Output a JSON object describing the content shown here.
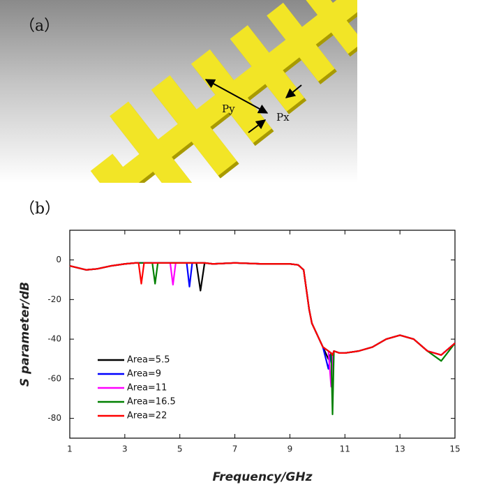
{
  "figure": {
    "panel_a_label": "（a）",
    "panel_b_label": "（b）",
    "dimension_labels": [
      "Py",
      "Px"
    ]
  },
  "chart_data": {
    "type": "line",
    "xlabel": "Frequency/GHz",
    "ylabel": "S parameter/dB",
    "x": [
      1,
      1.3,
      1.6,
      2,
      2.5,
      3,
      3.4,
      3.5,
      3.6,
      3.7,
      3.9,
      4.0,
      4.1,
      4.2,
      4.5,
      4.65,
      4.75,
      4.85,
      5.1,
      5.25,
      5.35,
      5.45,
      5.6,
      5.75,
      5.9,
      6.2,
      7,
      8,
      9,
      9.3,
      9.5,
      9.6,
      9.7,
      9.8,
      10,
      10.2,
      10.4,
      10.5,
      10.55,
      10.6,
      10.8,
      11,
      11.5,
      12,
      12.5,
      13,
      13.5,
      14,
      14.5,
      15
    ],
    "series": [
      {
        "name": "Area=5.5",
        "color": "#000000",
        "values": [
          -3,
          -4,
          -5,
          -4.5,
          -3,
          -2,
          -1.5,
          -1.5,
          -1.5,
          -1.5,
          -1.5,
          -1.5,
          -1.5,
          -1.5,
          -1.5,
          -1.5,
          -1.5,
          -1.5,
          -1.5,
          -1.5,
          -1.5,
          -1.5,
          -1.5,
          -15.5,
          -1.5,
          -2,
          -1.5,
          -2,
          -2,
          -2.5,
          -5,
          -15,
          -25,
          -32,
          -38,
          -44,
          -50,
          -47,
          -48,
          -46,
          -47,
          -47,
          -46,
          -44,
          -40,
          -38,
          -40,
          -46,
          -48,
          -42
        ]
      },
      {
        "name": "Area=9",
        "color": "#0000ff",
        "values": [
          -3,
          -4,
          -5,
          -4.5,
          -3,
          -2,
          -1.5,
          -1.5,
          -1.5,
          -1.5,
          -1.5,
          -1.5,
          -1.5,
          -1.5,
          -1.5,
          -1.5,
          -1.5,
          -1.5,
          -1.5,
          -1.5,
          -13.5,
          -1.5,
          -1.5,
          -1.5,
          -1.5,
          -2,
          -1.5,
          -2,
          -2,
          -2.5,
          -5,
          -15,
          -25,
          -32,
          -38,
          -44,
          -55,
          -47,
          -48,
          -46,
          -47,
          -47,
          -46,
          -44,
          -40,
          -38,
          -40,
          -46,
          -48,
          -42
        ]
      },
      {
        "name": "Area=11",
        "color": "#ff00ff",
        "values": [
          -3,
          -4,
          -5,
          -4.5,
          -3,
          -2,
          -1.5,
          -1.5,
          -1.5,
          -1.5,
          -1.5,
          -1.5,
          -1.5,
          -1.5,
          -1.5,
          -1.5,
          -12.5,
          -1.5,
          -1.5,
          -1.5,
          -1.5,
          -1.5,
          -1.5,
          -1.5,
          -1.5,
          -2,
          -1.5,
          -2,
          -2,
          -2.5,
          -5,
          -15,
          -25,
          -32,
          -38,
          -44,
          -46,
          -64,
          -48,
          -46,
          -47,
          -47,
          -46,
          -44,
          -40,
          -38,
          -40,
          -46,
          -48,
          -42
        ]
      },
      {
        "name": "Area=16.5",
        "color": "#008000",
        "values": [
          -3,
          -4,
          -5,
          -4.5,
          -3,
          -2,
          -1.5,
          -1.5,
          -1.5,
          -1.5,
          -1.5,
          -1.5,
          -12,
          -1.5,
          -1.5,
          -1.5,
          -1.5,
          -1.5,
          -1.5,
          -1.5,
          -1.5,
          -1.5,
          -1.5,
          -1.5,
          -1.5,
          -2,
          -1.5,
          -2,
          -2,
          -2.5,
          -5,
          -15,
          -25,
          -32,
          -38,
          -44,
          -46,
          -47,
          -78,
          -46,
          -47,
          -47,
          -46,
          -44,
          -40,
          -38,
          -40,
          -46,
          -51,
          -42
        ]
      },
      {
        "name": "Area=22",
        "color": "#ff0000",
        "values": [
          -3,
          -4,
          -5,
          -4.5,
          -3,
          -2,
          -1.5,
          -1.5,
          -12,
          -1.5,
          -1.5,
          -1.5,
          -1.5,
          -1.5,
          -1.5,
          -1.5,
          -1.5,
          -1.5,
          -1.5,
          -1.5,
          -1.5,
          -1.5,
          -1.5,
          -1.5,
          -1.5,
          -2,
          -1.5,
          -2,
          -2,
          -2.5,
          -5,
          -15,
          -25,
          -32,
          -38,
          -44,
          -46,
          -47,
          -48,
          -46,
          -47,
          -47,
          -46,
          -44,
          -40,
          -38,
          -40,
          -46,
          -48,
          -42
        ]
      }
    ],
    "xlim": [
      1,
      15
    ],
    "ylim": [
      -90,
      15
    ],
    "xticks": [
      1,
      3,
      5,
      7,
      9,
      11,
      13,
      15
    ],
    "yticks": [
      -80,
      -60,
      -40,
      -20,
      0
    ],
    "legend": "lower-left"
  }
}
